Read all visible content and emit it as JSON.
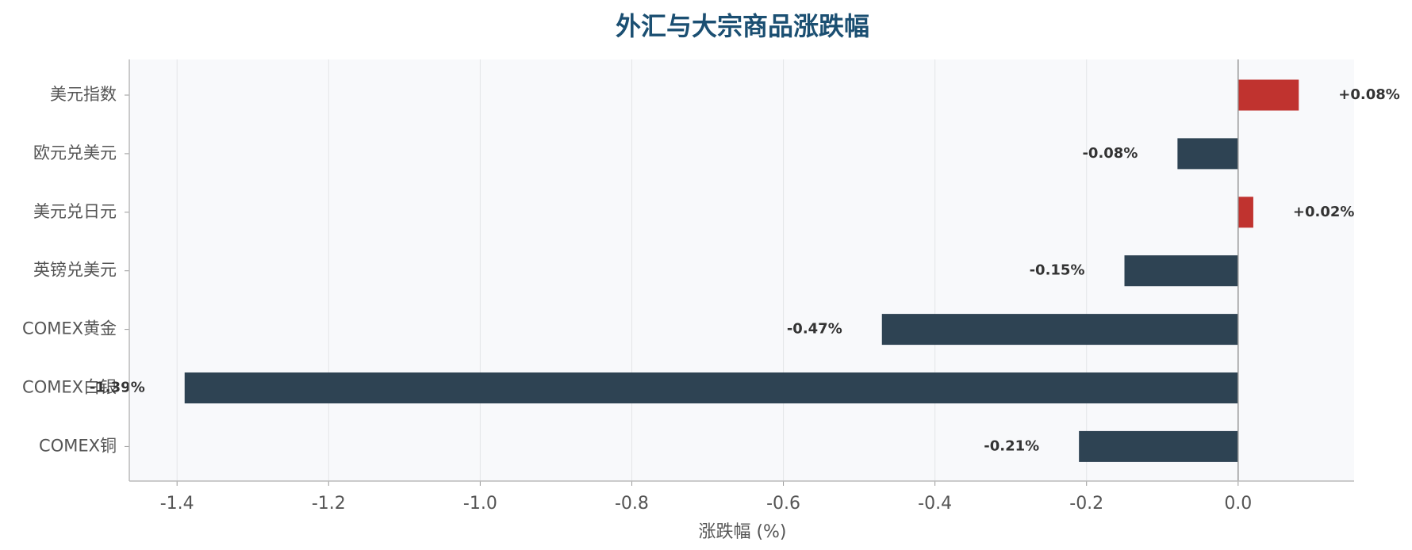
{
  "chart_data": {
    "type": "barh",
    "title": "外汇与大宗商品涨跌幅",
    "x_label": "涨跌幅 (%)",
    "categories": [
      "美元指数",
      "欧元兑美元",
      "美元兑日元",
      "英镑兑美元",
      "COMEX黄金",
      "COMEX白银",
      "COMEX铜"
    ],
    "values": [
      0.08,
      -0.08,
      0.02,
      -0.15,
      -0.47,
      -1.39,
      -0.21
    ],
    "value_labels": [
      "+0.08%",
      "-0.08%",
      "+0.02%",
      "-0.15%",
      "-0.47%",
      "-1.39%",
      "-0.21%"
    ],
    "colors": [
      "#c0332f",
      "#2e4353",
      "#c0332f",
      "#2e4353",
      "#2e4353",
      "#2e4353",
      "#2e4353"
    ],
    "xlim": [
      -1.463,
      0.153
    ],
    "xticks": [
      -1.4,
      -1.2,
      {
        "value": -1.0,
        "label": "-1.0"
      },
      -0.8,
      -0.6,
      -0.4,
      -0.2,
      {
        "value": 0,
        "label": "0.0"
      }
    ],
    "grid": true
  }
}
